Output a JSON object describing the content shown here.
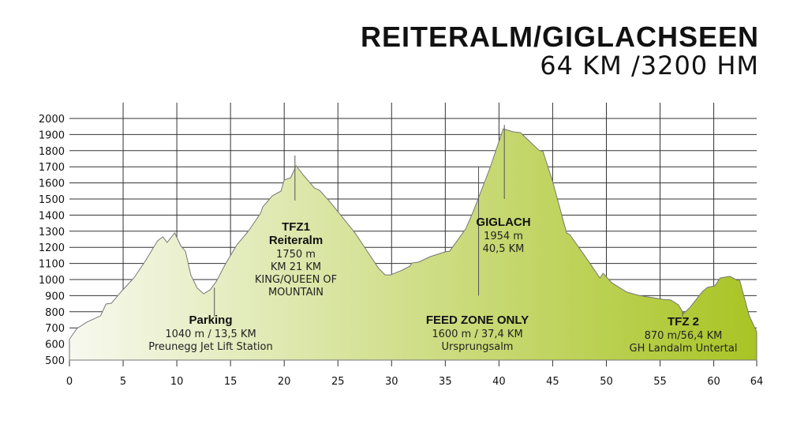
{
  "title": {
    "line1": "REITERALM/GIGLACHSEEN",
    "line2": "64 KM /3200 HM"
  },
  "colors": {
    "grid": "#333333",
    "fill_start": "#f7f9ef",
    "fill_end": "#a9c424",
    "outline": "#777777"
  },
  "chart_data": {
    "type": "area",
    "title": "REITERALM/GIGLACHSEEN",
    "xlabel": "",
    "ylabel": "",
    "xlim": [
      0,
      64
    ],
    "ylim": [
      500,
      2000
    ],
    "xticks": [
      0,
      5,
      10,
      15,
      20,
      25,
      30,
      35,
      40,
      45,
      50,
      55,
      60,
      64
    ],
    "yticks": [
      500,
      600,
      700,
      800,
      900,
      1000,
      1100,
      1200,
      1300,
      1400,
      1500,
      1600,
      1700,
      1800,
      1900,
      2000
    ],
    "grid": true,
    "x": [
      0,
      0.7,
      1.6,
      2.9,
      3.4,
      3.9,
      4.9,
      6.0,
      7.1,
      8.2,
      8.7,
      9.1,
      9.8,
      10.4,
      10.8,
      11.3,
      11.9,
      12.5,
      13.1,
      13.7,
      14.5,
      15.6,
      16.7,
      17.8,
      18.0,
      18.9,
      19.7,
      20.0,
      20.6,
      21.1,
      21.8,
      22.8,
      23.3,
      24.4,
      26.6,
      28.8,
      29.4,
      29.9,
      31.0,
      31.7,
      31.9,
      32.5,
      33.6,
      35.0,
      35.4,
      36.9,
      37.6,
      39.1,
      40.4,
      41.3,
      42.0,
      43.7,
      44.1,
      45.0,
      46.3,
      46.6,
      48.3,
      49.4,
      49.7,
      50.5,
      51.9,
      53.0,
      55.3,
      56.0,
      56.7,
      57.2,
      57.8,
      58.9,
      59.4,
      60.1,
      60.6,
      61.5,
      62.2,
      62.4,
      63.3,
      64
    ],
    "y": [
      630,
      696,
      735,
      775,
      848,
      853,
      931,
      1010,
      1118,
      1240,
      1265,
      1230,
      1289,
      1206,
      1176,
      1029,
      946,
      912,
      936,
      990,
      1093,
      1216,
      1304,
      1412,
      1451,
      1520,
      1549,
      1618,
      1632,
      1706,
      1647,
      1569,
      1554,
      1471,
      1289,
      1069,
      1029,
      1029,
      1059,
      1083,
      1103,
      1108,
      1142,
      1172,
      1176,
      1314,
      1422,
      1681,
      1936,
      1917,
      1912,
      1804,
      1794,
      1608,
      1289,
      1279,
      1118,
      1010,
      1039,
      980,
      922,
      902,
      877,
      873,
      843,
      789,
      828,
      922,
      951,
      961,
      1010,
      1020,
      995,
      1000,
      775,
      676
    ],
    "annotations": [
      {
        "km": 13.5,
        "marker_top": 950,
        "marker_bottom": 770,
        "lines": [
          "Parking",
          "1040 m / 13,5 KM",
          "Preunegg Jet Lift Station"
        ]
      },
      {
        "km": 21,
        "marker_top": 1770,
        "marker_bottom": 1490,
        "lines": [
          "TFZ1",
          "Reiteralm",
          "1750 m",
          "KM 21 KM",
          "KING/QUEEN OF",
          "MOUNTAIN"
        ]
      },
      {
        "km": 38.1,
        "marker_top": 1700,
        "marker_bottom": 900,
        "lines": [
          "FEED ZONE ONLY",
          "1600 m / 37,4 KM",
          "Ursprungsalm"
        ]
      },
      {
        "km": 40.5,
        "marker_top": 1960,
        "marker_bottom": 1500,
        "lines": [
          "GIGLACH",
          "1954 m",
          "40,5 KM"
        ]
      },
      {
        "km": 57.1,
        "marker_top": 800,
        "marker_bottom": 770,
        "lines": [
          "TFZ 2",
          "870 m/56,4 KM",
          "GH Landalm Untertal"
        ]
      }
    ]
  }
}
